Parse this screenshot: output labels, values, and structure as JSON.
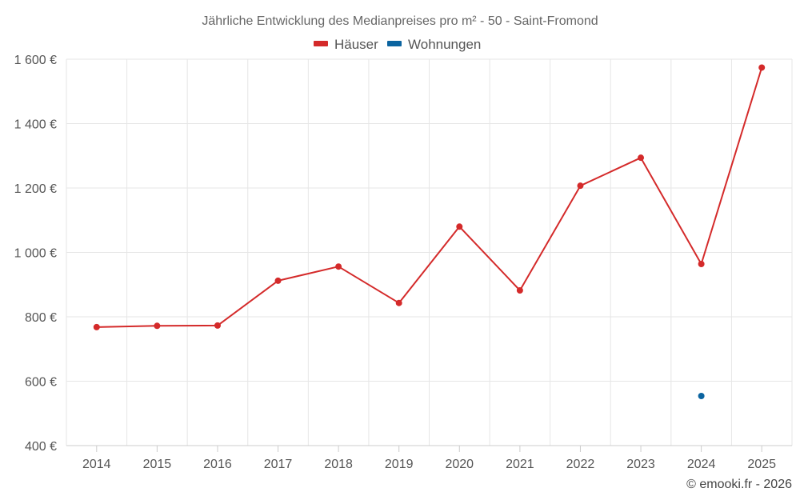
{
  "chart_data": {
    "type": "line",
    "title": "Jährliche Entwicklung des Medianpreises pro m² - 50 - Saint-Fromond",
    "categories": [
      "2014",
      "2015",
      "2016",
      "2017",
      "2018",
      "2019",
      "2020",
      "2021",
      "2022",
      "2023",
      "2024",
      "2025"
    ],
    "ylim": [
      400,
      1600
    ],
    "yticks": [
      400,
      600,
      800,
      1000,
      1200,
      1400,
      1600
    ],
    "ytick_labels": [
      "400 €",
      "600 €",
      "800 €",
      "1 000 €",
      "1 200 €",
      "1 400 €",
      "1 600 €"
    ],
    "legend_position": "top-center",
    "series": [
      {
        "name": "Häuser",
        "color": "#d42a2a",
        "values": [
          768,
          772,
          773,
          912,
          956,
          843,
          1080,
          882,
          1207,
          1294,
          964,
          1574
        ]
      },
      {
        "name": "Wohnungen",
        "color": "#0b64a0",
        "values": [
          null,
          null,
          null,
          null,
          null,
          null,
          null,
          null,
          null,
          null,
          554,
          null
        ]
      }
    ]
  },
  "credit": "© emooki.fr - 2026"
}
